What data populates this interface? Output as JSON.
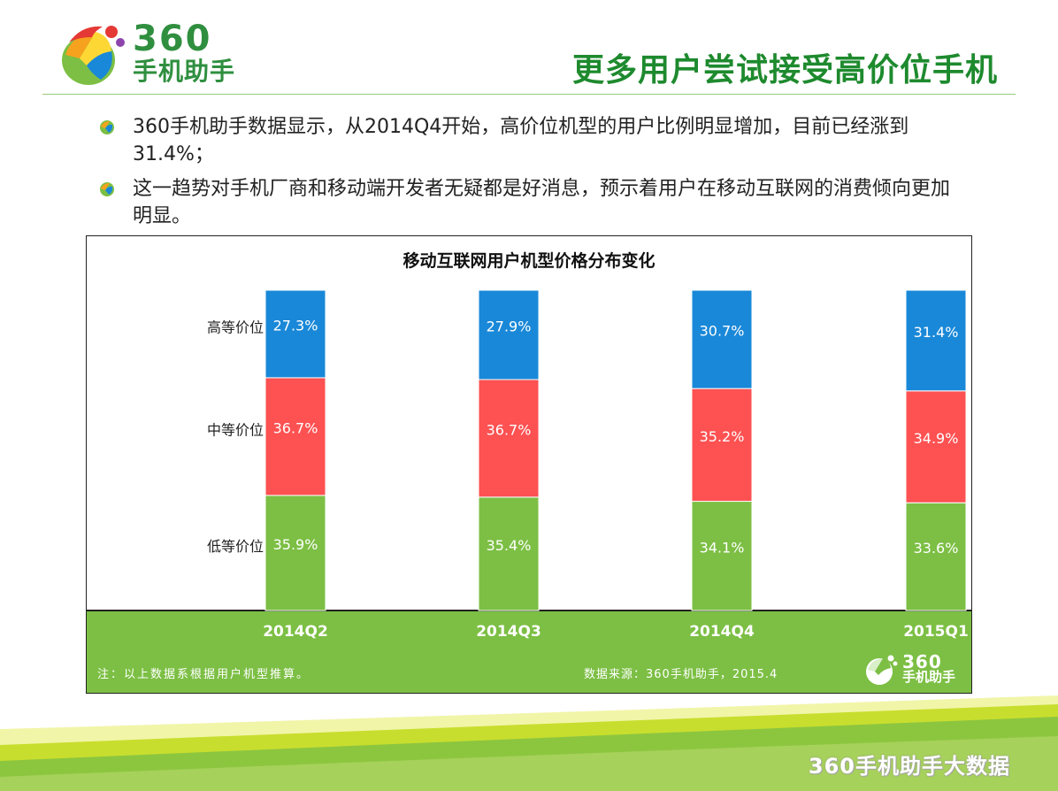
{
  "brand": {
    "logo_number": "360",
    "logo_name": "手机助手"
  },
  "slide": {
    "title": "更多用户尝试接受高价位手机"
  },
  "bullets": [
    {
      "text": "360手机助手数据显示，从2014Q4开始，高价位机型的用户比例明显增加，目前已经涨到31.4%；"
    },
    {
      "text": "这一趋势对手机厂商和移动端开发者无疑都是好消息，预示着用户在移动互联网的消费倾向更加明显。"
    }
  ],
  "chart_data": {
    "type": "bar",
    "stacked": true,
    "title": "移动互联网用户机型价格分布变化",
    "categories": [
      "2014Q2",
      "2014Q3",
      "2014Q4",
      "2015Q1"
    ],
    "series": [
      {
        "name": "低等价位",
        "color": "#7cbf44",
        "values": [
          35.9,
          35.4,
          34.1,
          33.6
        ]
      },
      {
        "name": "中等价位",
        "color": "#fd5152",
        "values": [
          36.7,
          36.7,
          35.2,
          34.9
        ]
      },
      {
        "name": "高等价位",
        "color": "#1a88d8",
        "values": [
          27.3,
          27.9,
          30.7,
          31.4
        ]
      }
    ],
    "value_suffix": "%",
    "ylim": [
      0,
      100
    ]
  },
  "chart_footer": {
    "note": "注：以上数据系根据用户机型推算。",
    "source": "数据来源：360手机助手，2015.4",
    "band_color": "#7cbf44"
  },
  "watermark": "360手机助手大数据"
}
